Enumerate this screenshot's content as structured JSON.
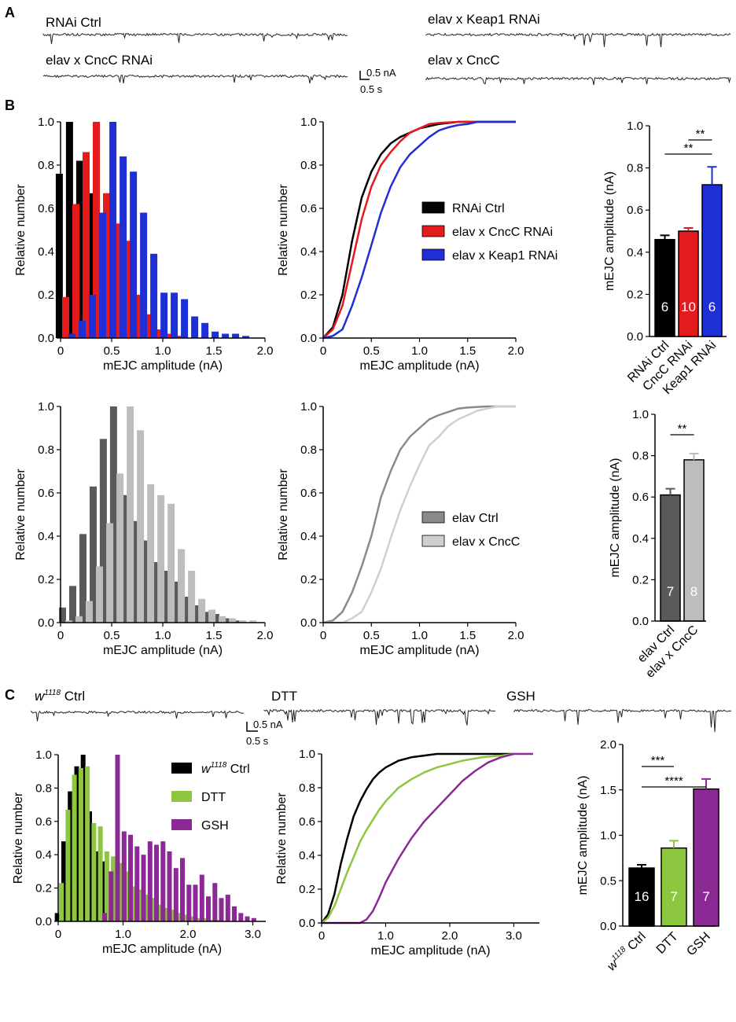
{
  "panel_labels": [
    "A",
    "B",
    "C"
  ],
  "scale_bars": [
    {
      "current": "0.5 nA",
      "time": "0.5 s"
    },
    {
      "current": "0.5 nA",
      "time": "0.5 s"
    }
  ],
  "colors": {
    "black": "#000000",
    "red": "#e41a1c",
    "blue": "#1f2fd6",
    "dark_gray": "#5a5a5a",
    "light_gray": "#bdbdbd",
    "green": "#8dc63f",
    "purple": "#8b2a95",
    "trace": "#222222"
  },
  "traces": [
    {
      "label": "RNAi Ctrl",
      "color": "#000000"
    },
    {
      "label": "elav x CncC RNAi",
      "color": "#e41a1c"
    },
    {
      "label": "elav x Keap1 RNAi",
      "color": "#1f2fd6"
    },
    {
      "label": "elav x CncC",
      "color": "#8a8a8a"
    },
    {
      "label_prefix": "w",
      "label_sup": "1118",
      "label_rest": " Ctrl",
      "color": "#000000"
    },
    {
      "label": "DTT",
      "color": "#8dc63f"
    },
    {
      "label": "GSH",
      "color": "#2b2b6b"
    }
  ],
  "chart_data": [
    {
      "id": "B1",
      "type": "bar",
      "title": "",
      "xlabel": "mEJC amplitude (nA)",
      "ylabel": "Relative number",
      "xlim": [
        0,
        2.0
      ],
      "ylim": [
        0,
        1.0
      ],
      "xticks": [
        "0",
        "0.5",
        "1.0",
        "1.5",
        "2.0"
      ],
      "yticks": [
        "0.0",
        "0.2",
        "0.4",
        "0.6",
        "0.8",
        "1.0"
      ],
      "x": [
        0.05,
        0.15,
        0.25,
        0.35,
        0.45,
        0.55,
        0.65,
        0.75,
        0.85,
        0.95,
        1.05,
        1.15,
        1.25,
        1.35,
        1.45,
        1.55,
        1.65,
        1.75,
        1.85,
        1.95
      ],
      "series": [
        {
          "name": "RNAi Ctrl",
          "color": "#000000",
          "values": [
            0.76,
            1.0,
            0.82,
            0.67,
            0.54,
            0.49,
            0.33,
            0.16,
            0.09,
            0.06,
            0.03,
            0.02,
            0.01,
            0,
            0,
            0,
            0,
            0,
            0,
            0
          ]
        },
        {
          "name": "elav x CncC RNAi",
          "color": "#e41a1c",
          "values": [
            0.19,
            0.62,
            0.86,
            1.0,
            0.67,
            0.53,
            0.45,
            0.2,
            0.11,
            0.04,
            0.02,
            0.01,
            0,
            0,
            0,
            0,
            0,
            0,
            0,
            0
          ]
        },
        {
          "name": "elav x Keap1 RNAi",
          "color": "#1f2fd6",
          "values": [
            0.02,
            0.08,
            0.2,
            0.58,
            1.0,
            0.84,
            0.77,
            0.58,
            0.39,
            0.21,
            0.21,
            0.18,
            0.1,
            0.07,
            0.03,
            0.02,
            0.02,
            0.01,
            0,
            0
          ]
        }
      ]
    },
    {
      "id": "B2",
      "type": "line",
      "title": "",
      "xlabel": "mEJC amplitude (nA)",
      "ylabel": "Relative number",
      "xlim": [
        0,
        2.0
      ],
      "ylim": [
        0,
        1.0
      ],
      "xticks": [
        "0",
        "0.5",
        "1.0",
        "1.5",
        "2.0"
      ],
      "yticks": [
        "0.0",
        "0.2",
        "0.4",
        "0.6",
        "0.8",
        "1.0"
      ],
      "legend": "center-right",
      "series": [
        {
          "name": "RNAi Ctrl",
          "color": "#000000",
          "x": [
            0,
            0.1,
            0.2,
            0.3,
            0.4,
            0.5,
            0.6,
            0.7,
            0.8,
            0.9,
            1.0,
            1.1,
            1.2,
            1.4,
            1.6,
            1.8,
            2.0
          ],
          "y": [
            0,
            0.05,
            0.2,
            0.45,
            0.65,
            0.77,
            0.85,
            0.9,
            0.93,
            0.95,
            0.97,
            0.98,
            0.99,
            1.0,
            1.0,
            1.0,
            1.0
          ]
        },
        {
          "name": "elav x CncC RNAi",
          "color": "#e41a1c",
          "x": [
            0,
            0.1,
            0.2,
            0.3,
            0.4,
            0.5,
            0.6,
            0.7,
            0.8,
            0.9,
            1.0,
            1.1,
            1.2,
            1.4,
            1.6,
            1.8,
            2.0
          ],
          "y": [
            0,
            0.04,
            0.15,
            0.35,
            0.55,
            0.7,
            0.8,
            0.86,
            0.91,
            0.95,
            0.97,
            0.99,
            0.995,
            1.0,
            1.0,
            1.0,
            1.0
          ]
        },
        {
          "name": "elav x Keap1 RNAi",
          "color": "#1f2fd6",
          "x": [
            0,
            0.1,
            0.2,
            0.3,
            0.4,
            0.5,
            0.6,
            0.7,
            0.8,
            0.9,
            1.0,
            1.1,
            1.2,
            1.3,
            1.4,
            1.5,
            1.6,
            1.8,
            2.0
          ],
          "y": [
            0,
            0.01,
            0.04,
            0.15,
            0.28,
            0.43,
            0.58,
            0.7,
            0.79,
            0.85,
            0.89,
            0.93,
            0.96,
            0.975,
            0.985,
            0.99,
            1.0,
            1.0,
            1.0
          ]
        }
      ]
    },
    {
      "id": "B3",
      "type": "bar",
      "title": "",
      "xlabel": "",
      "ylabel": "mEJC amplitude (nA)",
      "ylim": [
        0,
        1.0
      ],
      "yticks": [
        "0.0",
        "0.2",
        "0.4",
        "0.6",
        "0.8",
        "1.0"
      ],
      "categories": [
        "RNAi Ctrl",
        "CncC RNAi",
        "Keap1 RNAi"
      ],
      "values": [
        0.46,
        0.5,
        0.72
      ],
      "errors": [
        0.02,
        0.015,
        0.085
      ],
      "n": [
        "6",
        "10",
        "6"
      ],
      "colors": [
        "#000000",
        "#e41a1c",
        "#1f2fd6"
      ],
      "significance": [
        {
          "between": [
            1,
            2
          ],
          "label": "**"
        },
        {
          "between": [
            0,
            2
          ],
          "label": "**"
        }
      ]
    },
    {
      "id": "B4",
      "type": "bar",
      "title": "",
      "xlabel": "mEJC amplitude (nA)",
      "ylabel": "Relative number",
      "xlim": [
        0,
        2.0
      ],
      "ylim": [
        0,
        1.0
      ],
      "xticks": [
        "0",
        "0.5",
        "1.0",
        "1.5",
        "2.0"
      ],
      "yticks": [
        "0.0",
        "0.2",
        "0.4",
        "0.6",
        "0.8",
        "1.0"
      ],
      "x": [
        0.05,
        0.15,
        0.25,
        0.35,
        0.45,
        0.55,
        0.65,
        0.75,
        0.85,
        0.95,
        1.05,
        1.15,
        1.25,
        1.35,
        1.45,
        1.55,
        1.65,
        1.75,
        1.85,
        1.95
      ],
      "series": [
        {
          "name": "elav Ctrl",
          "color": "#5a5a5a",
          "values": [
            0.07,
            0.17,
            0.41,
            0.63,
            0.85,
            1.0,
            0.59,
            0.47,
            0.38,
            0.28,
            0.24,
            0.19,
            0.12,
            0.08,
            0.05,
            0.04,
            0.02,
            0.01,
            0,
            0
          ]
        },
        {
          "name": "elav x CncC",
          "color": "#bdbdbd",
          "values": [
            0.01,
            0.03,
            0.1,
            0.26,
            0.46,
            0.69,
            1.0,
            0.89,
            0.64,
            0.59,
            0.55,
            0.34,
            0.24,
            0.11,
            0.06,
            0.03,
            0.02,
            0.01,
            0.01,
            0
          ]
        }
      ]
    },
    {
      "id": "B5",
      "type": "line",
      "title": "",
      "xlabel": "mEJC amplitude (nA)",
      "ylabel": "Relative number",
      "xlim": [
        0,
        2.0
      ],
      "ylim": [
        0,
        1.0
      ],
      "xticks": [
        "0",
        "0.5",
        "1.0",
        "1.5",
        "2.0"
      ],
      "yticks": [
        "0.0",
        "0.2",
        "0.4",
        "0.6",
        "0.8",
        "1.0"
      ],
      "legend": "center-right",
      "series": [
        {
          "name": "elav Ctrl",
          "color": "#8a8a8a",
          "x": [
            0,
            0.1,
            0.2,
            0.3,
            0.4,
            0.5,
            0.6,
            0.7,
            0.8,
            0.9,
            1.0,
            1.1,
            1.2,
            1.3,
            1.4,
            1.5,
            1.7,
            2.0
          ],
          "y": [
            0,
            0.01,
            0.05,
            0.14,
            0.26,
            0.4,
            0.58,
            0.7,
            0.8,
            0.86,
            0.9,
            0.94,
            0.96,
            0.975,
            0.99,
            0.995,
            1.0,
            1.0
          ]
        },
        {
          "name": "elav x CncC",
          "color": "#cfcfcf",
          "x": [
            0,
            0.2,
            0.3,
            0.4,
            0.5,
            0.6,
            0.7,
            0.8,
            0.9,
            1.0,
            1.1,
            1.2,
            1.3,
            1.4,
            1.5,
            1.6,
            1.7,
            1.8,
            2.0
          ],
          "y": [
            0,
            0.0,
            0.02,
            0.05,
            0.14,
            0.25,
            0.39,
            0.52,
            0.63,
            0.73,
            0.82,
            0.86,
            0.91,
            0.94,
            0.96,
            0.98,
            0.99,
            1.0,
            1.0
          ]
        }
      ]
    },
    {
      "id": "B6",
      "type": "bar",
      "title": "",
      "xlabel": "",
      "ylabel": "mEJC amplitude (nA)",
      "ylim": [
        0,
        1.0
      ],
      "yticks": [
        "0.0",
        "0.2",
        "0.4",
        "0.6",
        "0.8",
        "1.0"
      ],
      "categories": [
        "elav Ctrl",
        "elav x CncC"
      ],
      "values": [
        0.61,
        0.78
      ],
      "errors": [
        0.03,
        0.03
      ],
      "n": [
        "7",
        "8"
      ],
      "colors": [
        "#5a5a5a",
        "#bdbdbd"
      ],
      "significance": [
        {
          "between": [
            0,
            1
          ],
          "label": "**"
        }
      ]
    },
    {
      "id": "C1",
      "type": "bar",
      "title": "",
      "xlabel": "mEJC amplitude (nA)",
      "ylabel": "Relative number",
      "xlim": [
        0,
        3.2
      ],
      "ylim": [
        0,
        1.0
      ],
      "xticks": [
        "0",
        "1.0",
        "2.0",
        "3.0"
      ],
      "yticks": [
        "0.0",
        "0.2",
        "0.4",
        "0.6",
        "0.8",
        "1.0"
      ],
      "x": [
        0.05,
        0.15,
        0.25,
        0.35,
        0.45,
        0.55,
        0.65,
        0.75,
        0.85,
        0.95,
        1.05,
        1.15,
        1.25,
        1.35,
        1.45,
        1.55,
        1.65,
        1.75,
        1.85,
        1.95,
        2.05,
        2.15,
        2.25,
        2.35,
        2.45,
        2.55,
        2.65,
        2.75,
        2.85,
        2.95
      ],
      "series": [
        {
          "name": "w1118 Ctrl",
          "color": "#000000",
          "values": [
            0.05,
            0.48,
            0.78,
            0.93,
            1.0,
            0.66,
            0.42,
            0.36,
            0.29,
            0.2,
            0.15,
            0.1,
            0.07,
            0.05,
            0.03,
            0.02,
            0.01,
            0,
            0,
            0,
            0,
            0,
            0,
            0,
            0,
            0,
            0,
            0,
            0,
            0
          ]
        },
        {
          "name": "DTT",
          "color": "#8dc63f",
          "values": [
            0.23,
            0.67,
            0.88,
            0.92,
            0.93,
            0.59,
            0.57,
            0.42,
            0.39,
            0.35,
            0.3,
            0.21,
            0.19,
            0.16,
            0.14,
            0.1,
            0.08,
            0.07,
            0.05,
            0.04,
            0.03,
            0.02,
            0.02,
            0.01,
            0.01,
            0,
            0,
            0,
            0,
            0
          ]
        },
        {
          "name": "GSH",
          "color": "#8b2a95",
          "values": [
            0,
            0,
            0,
            0,
            0,
            0,
            0.05,
            0.3,
            1.0,
            0.54,
            0.52,
            0.45,
            0.4,
            0.48,
            0.46,
            0.48,
            0.42,
            0.32,
            0.38,
            0.22,
            0.22,
            0.28,
            0.15,
            0.23,
            0.14,
            0.16,
            0.09,
            0.05,
            0.03,
            0.02
          ]
        }
      ]
    },
    {
      "id": "C2",
      "type": "line",
      "title": "",
      "xlabel": "mEJC amplitude (nA)",
      "ylabel": "Relative number",
      "xlim": [
        0,
        3.4
      ],
      "ylim": [
        0,
        1.0
      ],
      "xticks": [
        "0",
        "1.0",
        "2.0",
        "3.0"
      ],
      "yticks": [
        "0.0",
        "0.2",
        "0.4",
        "0.6",
        "0.8",
        "1.0"
      ],
      "series": [
        {
          "name": "w1118 Ctrl",
          "color": "#000000",
          "x": [
            0,
            0.1,
            0.2,
            0.3,
            0.4,
            0.5,
            0.6,
            0.7,
            0.8,
            0.9,
            1.0,
            1.2,
            1.4,
            1.6,
            1.8,
            2.0,
            3.0
          ],
          "y": [
            0,
            0.05,
            0.17,
            0.35,
            0.5,
            0.63,
            0.72,
            0.79,
            0.85,
            0.89,
            0.92,
            0.96,
            0.98,
            0.99,
            1.0,
            1.0,
            1.0
          ]
        },
        {
          "name": "DTT",
          "color": "#8dc63f",
          "x": [
            0,
            0.1,
            0.2,
            0.3,
            0.4,
            0.5,
            0.6,
            0.7,
            0.8,
            0.9,
            1.0,
            1.2,
            1.4,
            1.6,
            1.8,
            2.0,
            2.2,
            2.5,
            2.8,
            3.0
          ],
          "y": [
            0,
            0.03,
            0.1,
            0.2,
            0.3,
            0.39,
            0.48,
            0.55,
            0.61,
            0.67,
            0.72,
            0.8,
            0.85,
            0.89,
            0.92,
            0.94,
            0.96,
            0.98,
            0.99,
            1.0
          ]
        },
        {
          "name": "GSH",
          "color": "#8b2a95",
          "x": [
            0,
            0.6,
            0.7,
            0.8,
            0.9,
            1.0,
            1.2,
            1.4,
            1.6,
            1.8,
            2.0,
            2.2,
            2.4,
            2.6,
            2.8,
            3.0,
            3.3
          ],
          "y": [
            0,
            0.0,
            0.02,
            0.07,
            0.15,
            0.24,
            0.38,
            0.5,
            0.6,
            0.68,
            0.76,
            0.84,
            0.9,
            0.95,
            0.98,
            1.0,
            1.0
          ]
        }
      ]
    },
    {
      "id": "C3",
      "type": "bar",
      "title": "",
      "xlabel": "",
      "ylabel": "mEJC amplitude (nA)",
      "ylim": [
        0,
        2.0
      ],
      "yticks": [
        "0.0",
        "0.5",
        "1.0",
        "1.5",
        "2.0"
      ],
      "categories": [
        "w1118 Ctrl",
        "DTT",
        "GSH"
      ],
      "values": [
        0.64,
        0.86,
        1.51
      ],
      "errors": [
        0.035,
        0.08,
        0.11
      ],
      "n": [
        "16",
        "7",
        "7"
      ],
      "colors": [
        "#000000",
        "#8dc63f",
        "#8b2a95"
      ],
      "significance": [
        {
          "between": [
            0,
            1
          ],
          "label": "***"
        },
        {
          "between": [
            0,
            2
          ],
          "label": "****"
        }
      ]
    }
  ]
}
